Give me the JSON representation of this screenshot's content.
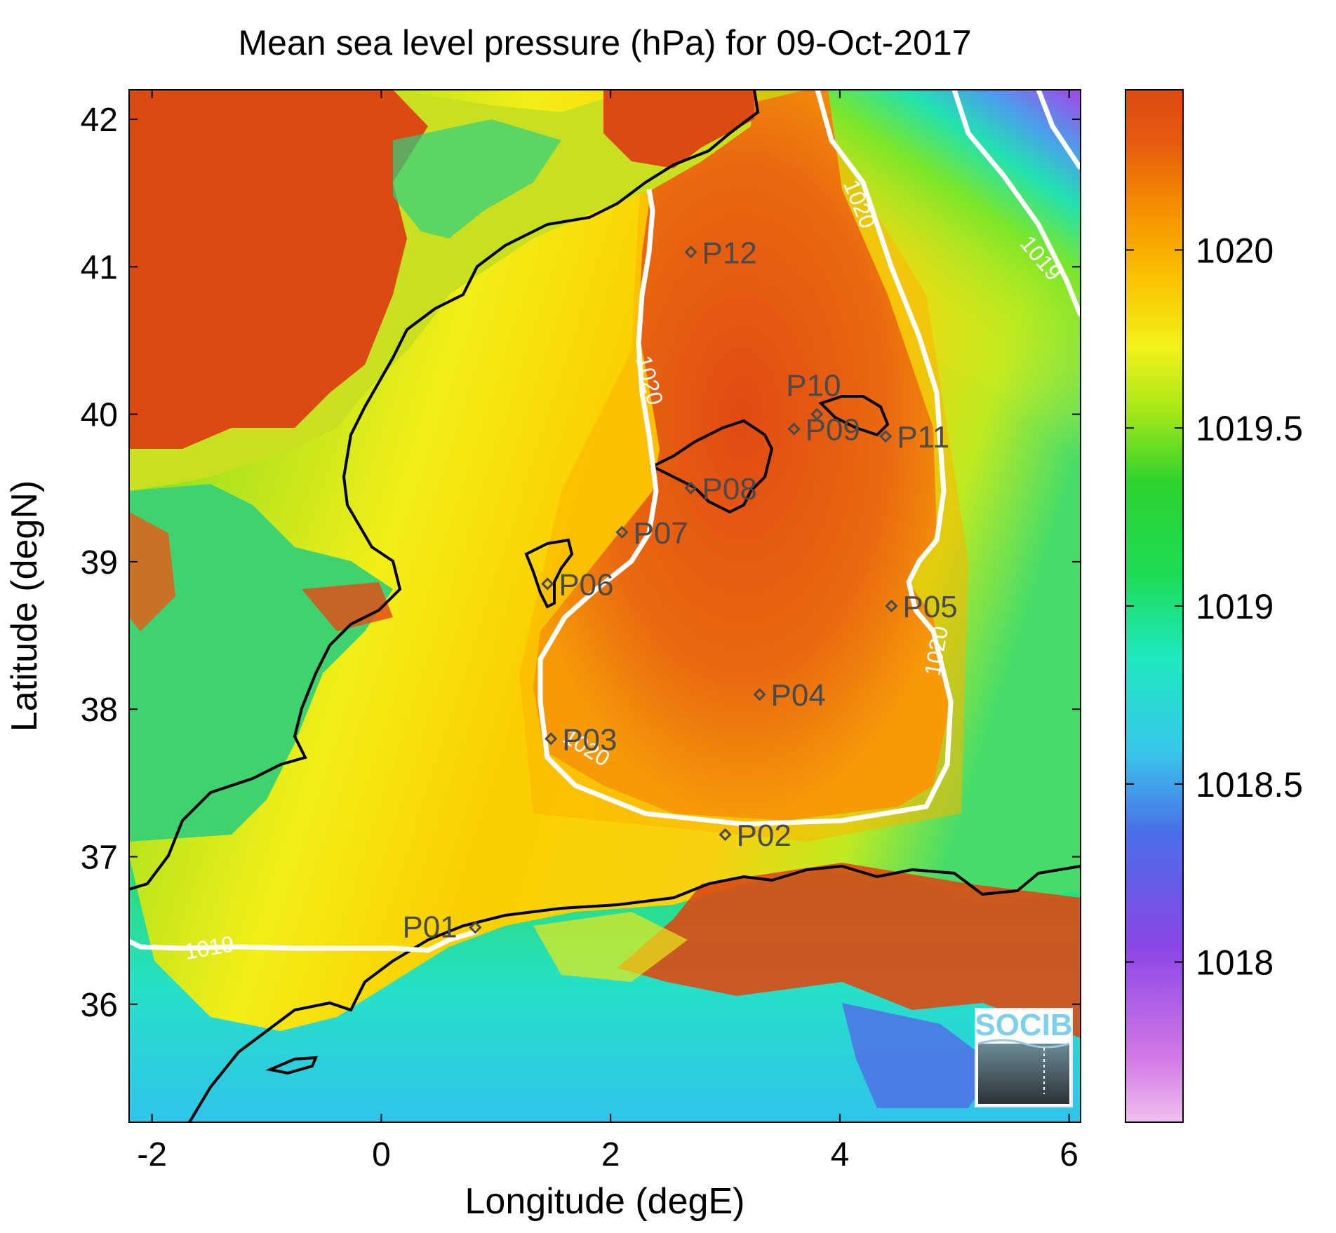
{
  "chart_data": {
    "type": "heatmap",
    "title": "Mean sea level pressure (hPa) for 09-Oct-2017",
    "xlabel": "Longitude (degE)",
    "ylabel": "Latitude (degN)",
    "xlim": [
      -2.2,
      6.1
    ],
    "ylim": [
      35.2,
      42.2
    ],
    "x_ticks": [
      {
        "value": -2,
        "label": "-2"
      },
      {
        "value": 0,
        "label": "0"
      },
      {
        "value": 2,
        "label": "2"
      },
      {
        "value": 4,
        "label": "4"
      },
      {
        "value": 6,
        "label": "6"
      }
    ],
    "y_ticks": [
      {
        "value": 36,
        "label": "36"
      },
      {
        "value": 37,
        "label": "37"
      },
      {
        "value": 38,
        "label": "38"
      },
      {
        "value": 39,
        "label": "39"
      },
      {
        "value": 40,
        "label": "40"
      },
      {
        "value": 41,
        "label": "41"
      },
      {
        "value": 42,
        "label": "42"
      }
    ],
    "colorbar": {
      "range": [
        1017.55,
        1020.45
      ],
      "ticks": [
        {
          "value": 1018,
          "label": "1018"
        },
        {
          "value": 1018.5,
          "label": "1018.5"
        },
        {
          "value": 1019,
          "label": "1019"
        },
        {
          "value": 1019.5,
          "label": "1019.5"
        },
        {
          "value": 1020,
          "label": "1020"
        }
      ]
    },
    "contours": [
      {
        "level": 1020,
        "label": "1020"
      },
      {
        "level": 1019,
        "label": "1019"
      }
    ],
    "stations": [
      {
        "name": "P01",
        "lon": 0.82,
        "lat": 36.52
      },
      {
        "name": "P02",
        "lon": 3.0,
        "lat": 37.15
      },
      {
        "name": "P03",
        "lon": 1.48,
        "lat": 37.8
      },
      {
        "name": "P04",
        "lon": 3.3,
        "lat": 38.1
      },
      {
        "name": "P05",
        "lon": 4.45,
        "lat": 38.7
      },
      {
        "name": "P06",
        "lon": 1.45,
        "lat": 38.85
      },
      {
        "name": "P07",
        "lon": 2.1,
        "lat": 39.2
      },
      {
        "name": "P08",
        "lon": 2.7,
        "lat": 39.5
      },
      {
        "name": "P09",
        "lon": 3.6,
        "lat": 39.9
      },
      {
        "name": "P10",
        "lon": 3.8,
        "lat": 40.0
      },
      {
        "name": "P11",
        "lon": 4.4,
        "lat": 39.85
      },
      {
        "name": "P12",
        "lon": 2.7,
        "lat": 41.1
      }
    ],
    "colors": {
      "high": "#dc4a14",
      "mid_high": "#fbb000",
      "mid": "#f3f21a",
      "mid_low": "#1fdc55",
      "low": "#38c7ea",
      "lowest": "#e190e6",
      "contour": "#ffffff",
      "coast": "#000000",
      "station": "#4a4a4a"
    },
    "grid": false,
    "legend": "colorbar-right"
  },
  "logo": {
    "text": "SOCIB"
  }
}
